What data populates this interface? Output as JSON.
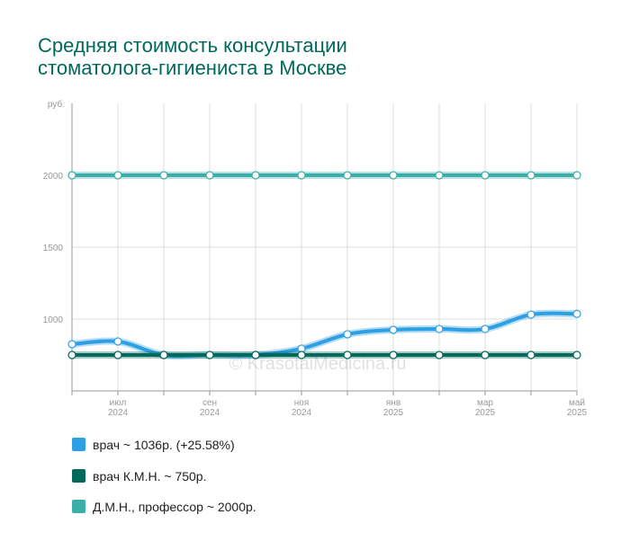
{
  "chart_data": {
    "type": "line",
    "title": "Средняя стоимость консультации стоматолога-гигиениста в Москве",
    "y_unit": "руб.",
    "watermark": "© KrasotaiMedicina.ru",
    "categories": [
      null,
      "июл 2024",
      null,
      "сен 2024",
      null,
      "ноя 2024",
      null,
      "янв 2025",
      null,
      "мар 2025",
      null,
      "май 2025"
    ],
    "ylim": [
      500,
      2500
    ],
    "yticks": [
      1000,
      1500,
      2000
    ],
    "grid": true,
    "legend": "bottom",
    "series": [
      {
        "name": "врач ~ 1036р. (+25.58%)",
        "color": "#2d9fe3",
        "values": [
          825,
          844,
          750,
          750,
          750,
          794,
          894,
          925,
          931,
          931,
          1031,
          1036
        ]
      },
      {
        "name": "врач К.М.Н. ~ 750р.",
        "color": "#00695c",
        "values": [
          750,
          750,
          750,
          750,
          750,
          750,
          750,
          750,
          750,
          750,
          750,
          750
        ]
      },
      {
        "name": "Д.М.Н., профессор ~ 2000р.",
        "color": "#3aafa9",
        "values": [
          2000,
          2000,
          2000,
          2000,
          2000,
          2000,
          2000,
          2000,
          2000,
          2000,
          2000,
          2000
        ]
      }
    ]
  }
}
